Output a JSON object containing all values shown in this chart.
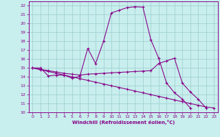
{
  "xlabel": "Windchill (Refroidissement éolien,°C)",
  "xlim": [
    -0.5,
    23.5
  ],
  "ylim": [
    10,
    22.5
  ],
  "xticks": [
    0,
    1,
    2,
    3,
    4,
    5,
    6,
    7,
    8,
    9,
    10,
    11,
    12,
    13,
    14,
    15,
    16,
    17,
    18,
    19,
    20,
    21,
    22,
    23
  ],
  "yticks": [
    10,
    11,
    12,
    13,
    14,
    15,
    16,
    17,
    18,
    19,
    20,
    21,
    22
  ],
  "bg_color": "#c8eeed",
  "line_color": "#880088",
  "grid_color": "#99cccc",
  "series_x": [
    [
      0,
      1,
      2,
      3,
      4,
      5,
      6,
      7,
      8,
      9,
      10,
      11,
      12,
      13,
      14,
      15,
      16,
      17,
      18,
      19,
      20,
      21,
      22,
      23
    ],
    [
      0,
      1,
      2,
      3,
      4,
      5,
      6,
      7,
      8,
      9,
      10,
      11,
      12,
      13,
      14,
      15,
      16,
      17,
      18,
      19,
      20,
      21,
      22,
      23
    ],
    [
      0,
      1,
      2,
      3,
      4,
      5,
      6,
      7,
      8,
      9,
      10,
      11,
      12,
      13,
      14,
      15,
      16,
      17,
      18,
      19,
      20,
      21,
      22,
      23
    ]
  ],
  "series_y": [
    [
      15.0,
      15.0,
      14.1,
      14.2,
      14.2,
      13.85,
      14.05,
      17.2,
      15.5,
      18.0,
      21.2,
      21.5,
      21.8,
      21.9,
      21.85,
      18.2,
      16.1,
      13.3,
      12.2,
      11.5,
      10.5,
      null,
      null,
      null
    ],
    [
      15.0,
      14.85,
      14.7,
      14.55,
      14.4,
      14.3,
      14.2,
      14.3,
      14.35,
      14.4,
      14.45,
      14.5,
      14.55,
      14.6,
      14.65,
      14.7,
      15.5,
      15.8,
      16.1,
      13.3,
      12.3,
      11.5,
      10.5,
      null
    ],
    [
      15.0,
      14.8,
      14.6,
      14.4,
      14.2,
      14.0,
      13.8,
      13.6,
      13.4,
      13.2,
      13.0,
      12.8,
      12.6,
      12.4,
      12.2,
      12.0,
      11.8,
      11.6,
      11.4,
      11.2,
      11.0,
      10.8,
      10.6,
      10.5
    ]
  ]
}
